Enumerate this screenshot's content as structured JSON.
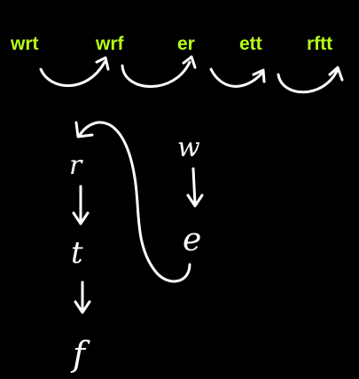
{
  "words": [
    "wrt",
    "wrf",
    "er",
    "ett",
    "rftt"
  ],
  "left_chain": [
    "r",
    "t",
    "f"
  ],
  "right_chain": [
    "w",
    "e"
  ],
  "colors": {
    "background": "#000000",
    "word": "#b7ff17",
    "ink": "#ffffff"
  }
}
